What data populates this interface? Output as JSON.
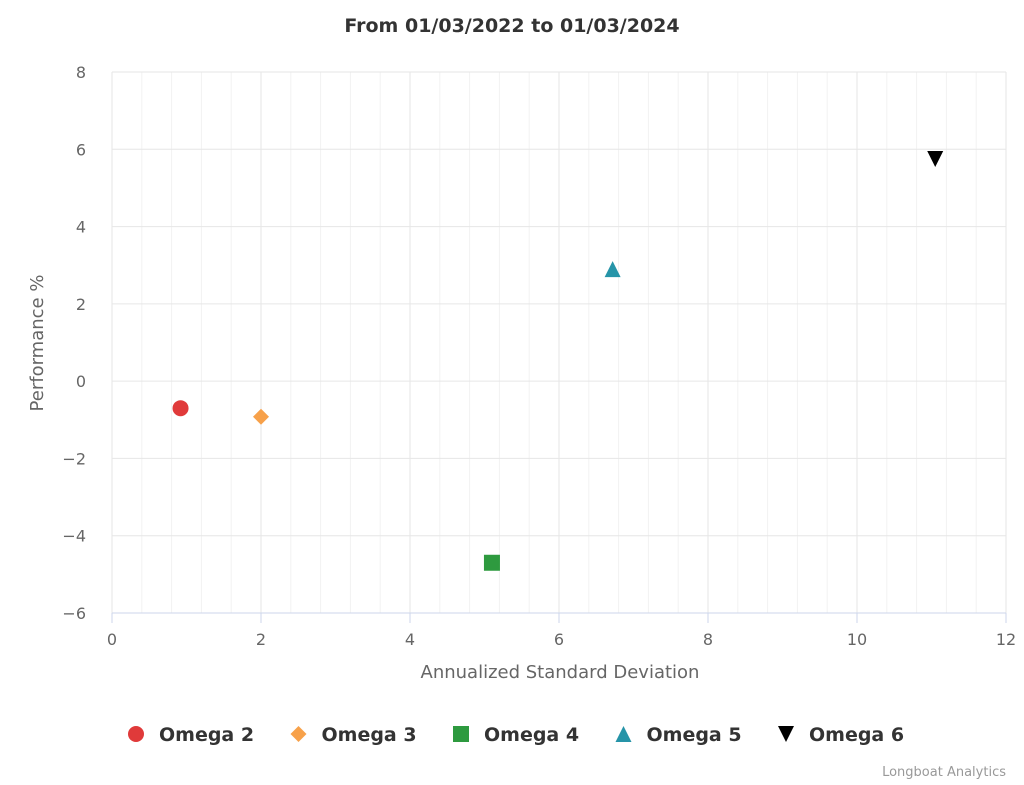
{
  "chart_data": {
    "type": "scatter",
    "title": "From 01/03/2022 to 01/03/2024",
    "xlabel": "Annualized Standard Deviation",
    "ylabel": "Performance %",
    "xlim": [
      0,
      12
    ],
    "ylim": [
      -6,
      8
    ],
    "x_ticks": [
      0,
      2,
      4,
      6,
      8,
      10,
      12
    ],
    "y_ticks": [
      8,
      6,
      4,
      2,
      0,
      -2,
      -4,
      -6
    ],
    "x_tick_labels": [
      "0",
      "2",
      "4",
      "6",
      "8",
      "10",
      "12"
    ],
    "y_tick_labels": [
      "8",
      "6",
      "4",
      "2",
      "0",
      "−2",
      "−4",
      "−6"
    ],
    "grid": true,
    "legend_position": "bottom-center",
    "series": [
      {
        "name": "Omega 2",
        "marker": "circle",
        "color": "#e03a3a",
        "x": 0.92,
        "y": -0.7
      },
      {
        "name": "Omega 3",
        "marker": "diamond",
        "color": "#f7a14a",
        "x": 2.0,
        "y": -0.92
      },
      {
        "name": "Omega 4",
        "marker": "square",
        "color": "#2e9a3f",
        "x": 5.1,
        "y": -4.7
      },
      {
        "name": "Omega 5",
        "marker": "triangle",
        "color": "#2694a8",
        "x": 6.72,
        "y": 2.9
      },
      {
        "name": "Omega 6",
        "marker": "triangle-down",
        "color": "#000000",
        "x": 11.05,
        "y": 5.75
      }
    ]
  },
  "credits": "Longboat Analytics"
}
